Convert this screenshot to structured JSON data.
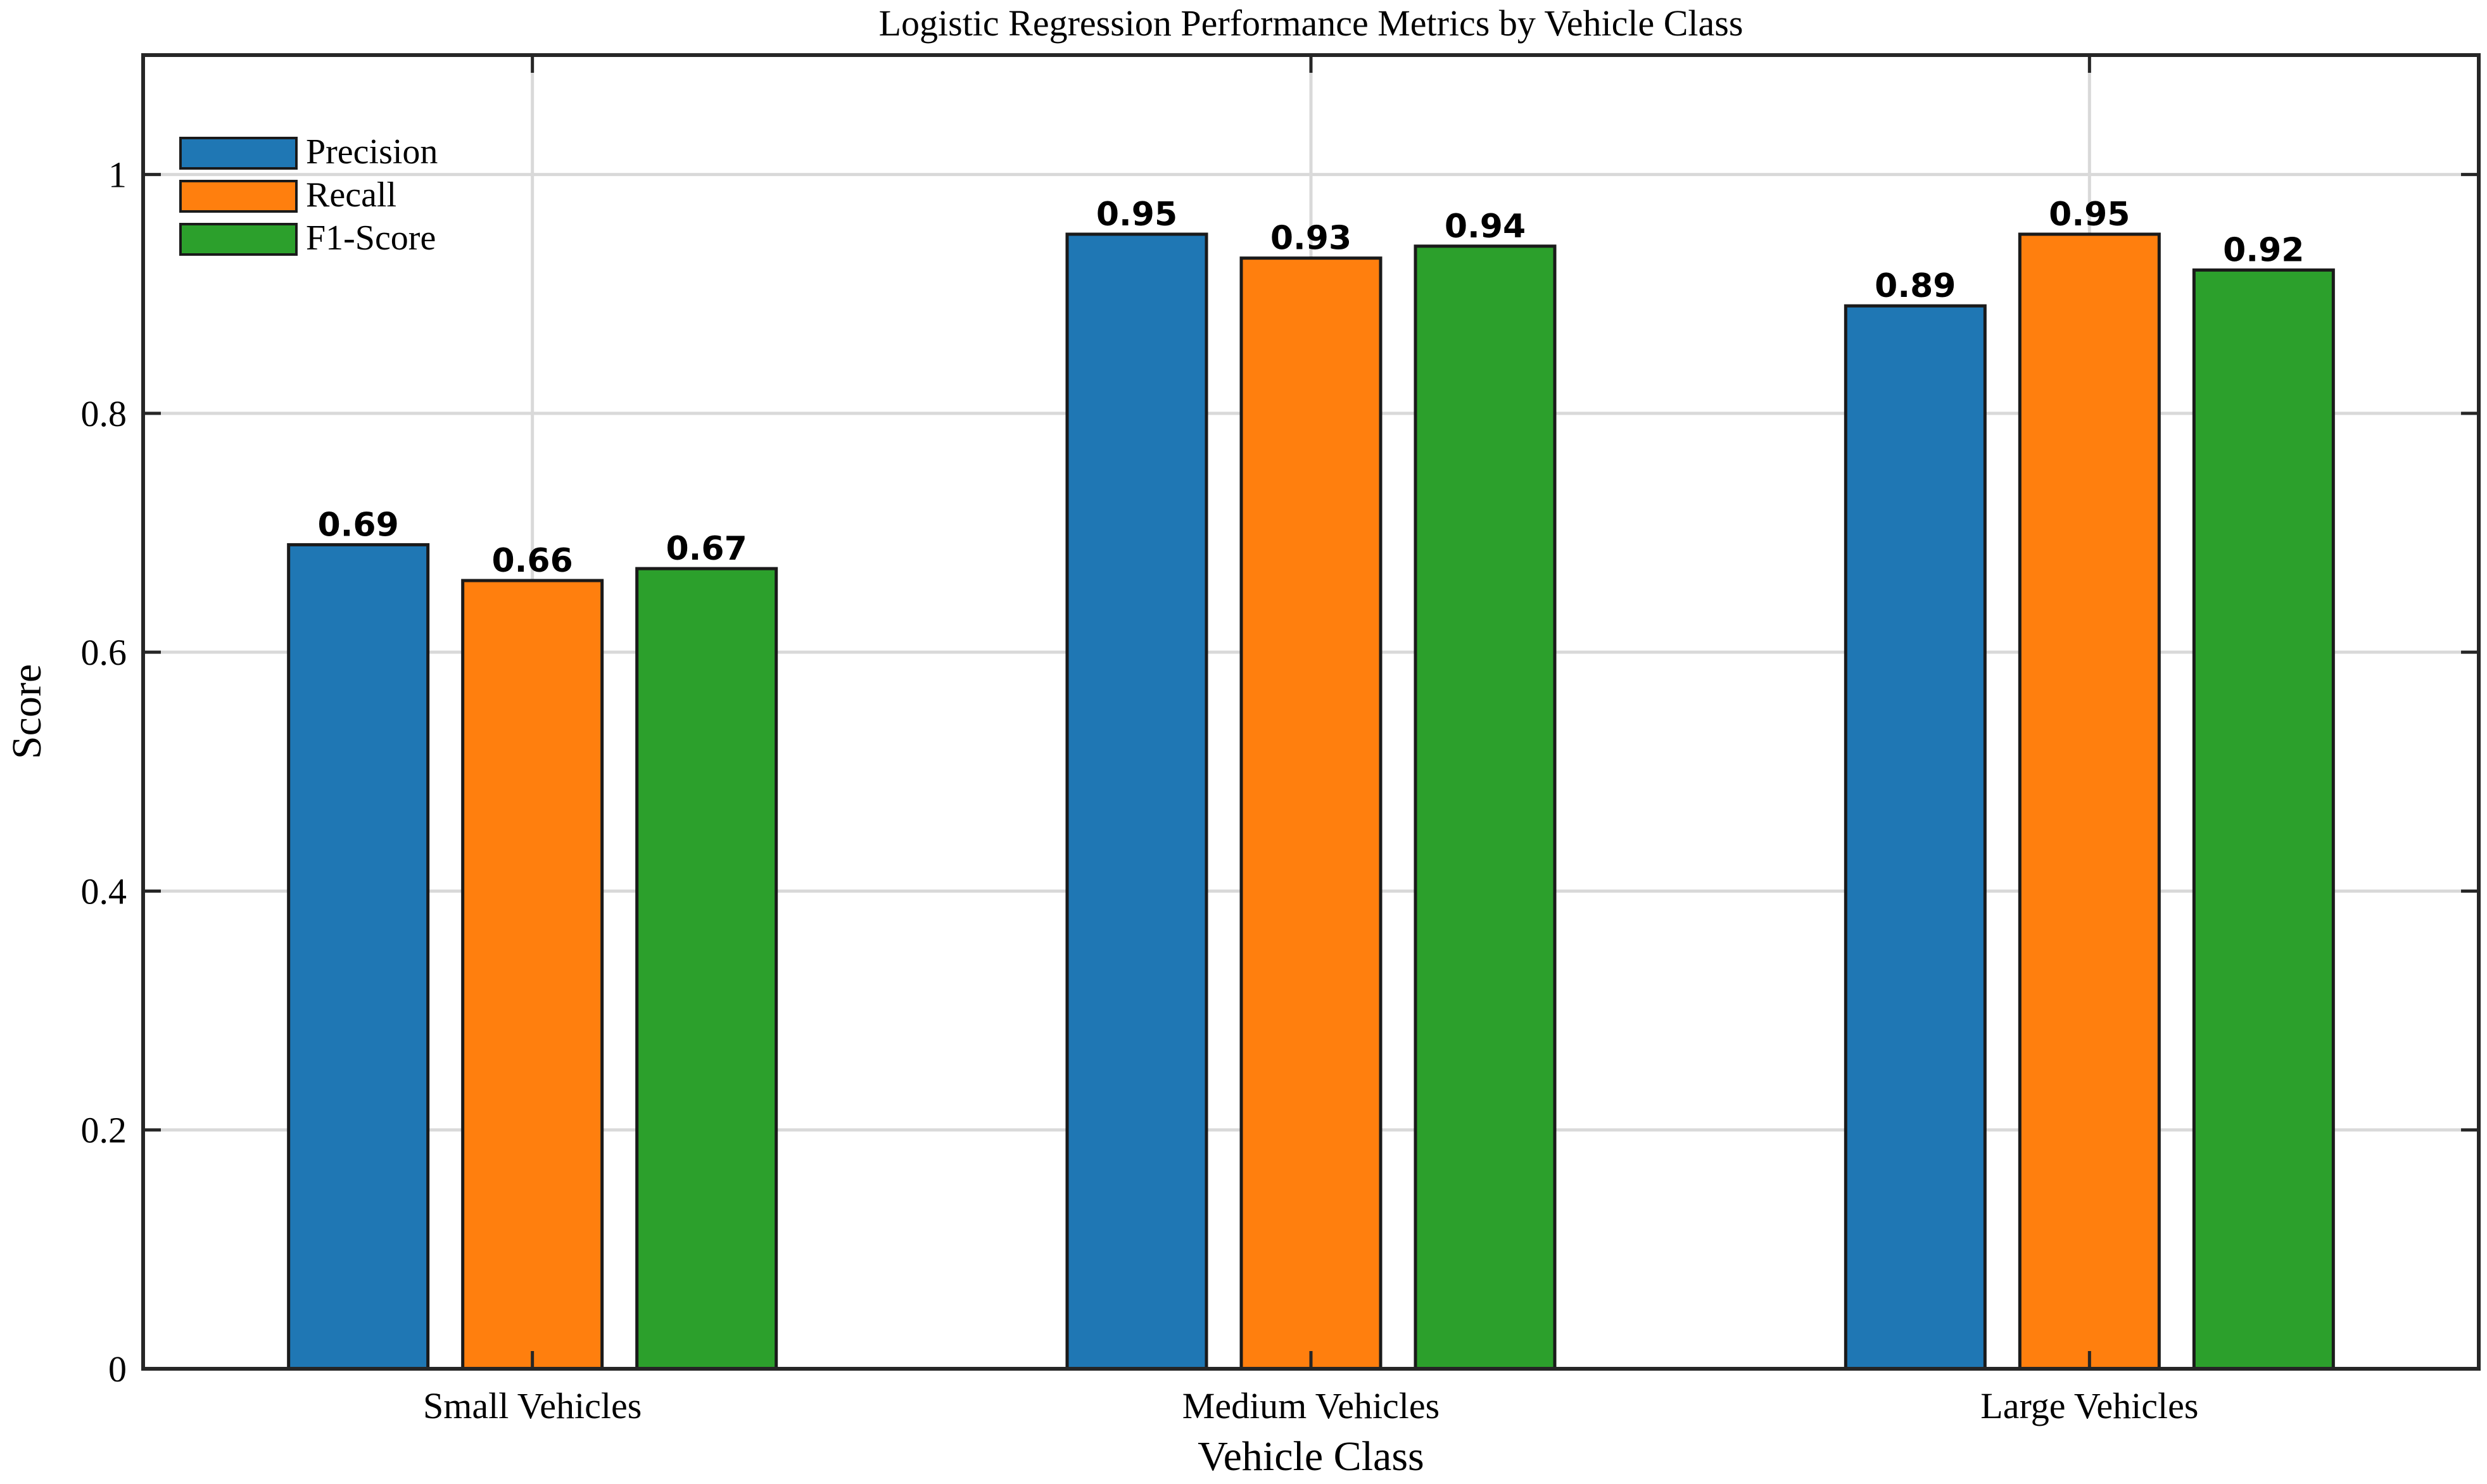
{
  "chart_data": {
    "type": "bar",
    "title": "Logistic Regression Performance Metrics by Vehicle Class",
    "xlabel": "Vehicle Class",
    "ylabel": "Score",
    "categories": [
      "Small Vehicles",
      "Medium Vehicles",
      "Large Vehicles"
    ],
    "series": [
      {
        "name": "Precision",
        "color": "#1f77b4",
        "values": [
          0.69,
          0.95,
          0.89
        ]
      },
      {
        "name": "Recall",
        "color": "#ff7f0e",
        "values": [
          0.66,
          0.93,
          0.95
        ]
      },
      {
        "name": "F1-Score",
        "color": "#2ca02c",
        "values": [
          0.67,
          0.94,
          0.92
        ]
      }
    ],
    "ylim": [
      0,
      1.1
    ],
    "yticks": [
      0,
      0.2,
      0.4,
      0.6,
      0.8,
      1
    ],
    "ytick_labels": [
      "0",
      "0.2",
      "0.4",
      "0.6",
      "0.8",
      "1"
    ],
    "grid": true,
    "legend_position": "top-left",
    "data_labels": true
  }
}
